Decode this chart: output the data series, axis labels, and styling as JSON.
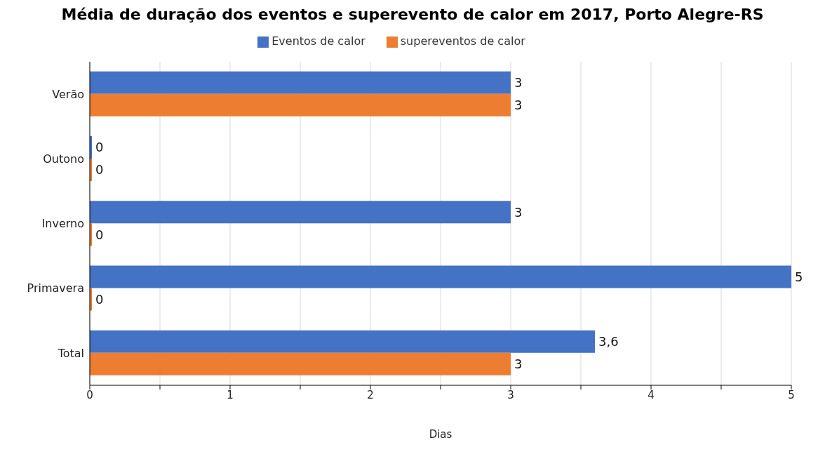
{
  "chart_data": {
    "type": "bar",
    "orientation": "horizontal",
    "title": "Média de duração dos eventos e superevento de calor em 2017, Porto Alegre-RS",
    "xlabel": "Dias",
    "categories": [
      "Verão",
      "Outono",
      "Inverno",
      "Primavera",
      "Total"
    ],
    "series": [
      {
        "name": "Eventos de calor",
        "color": "#4472c4",
        "values": [
          3,
          0,
          3,
          5,
          3.6
        ],
        "value_labels": [
          "3",
          "0",
          "3",
          "5",
          "3,6"
        ]
      },
      {
        "name": "supereventos de calor",
        "color": "#ed7d31",
        "values": [
          3,
          0,
          0,
          0,
          3
        ],
        "value_labels": [
          "3",
          "0",
          "0",
          "0",
          "3"
        ]
      }
    ],
    "xlim": [
      0,
      5
    ],
    "xticks": [
      0,
      {
        "value": 0.5,
        "label": null
      },
      1,
      {
        "value": 1.5,
        "label": null
      },
      2,
      {
        "value": 2.5,
        "label": null
      },
      3,
      {
        "value": 3.5,
        "label": null
      },
      4,
      {
        "value": 4.5,
        "label": null
      },
      5
    ],
    "grid": "x",
    "legend": "top"
  }
}
